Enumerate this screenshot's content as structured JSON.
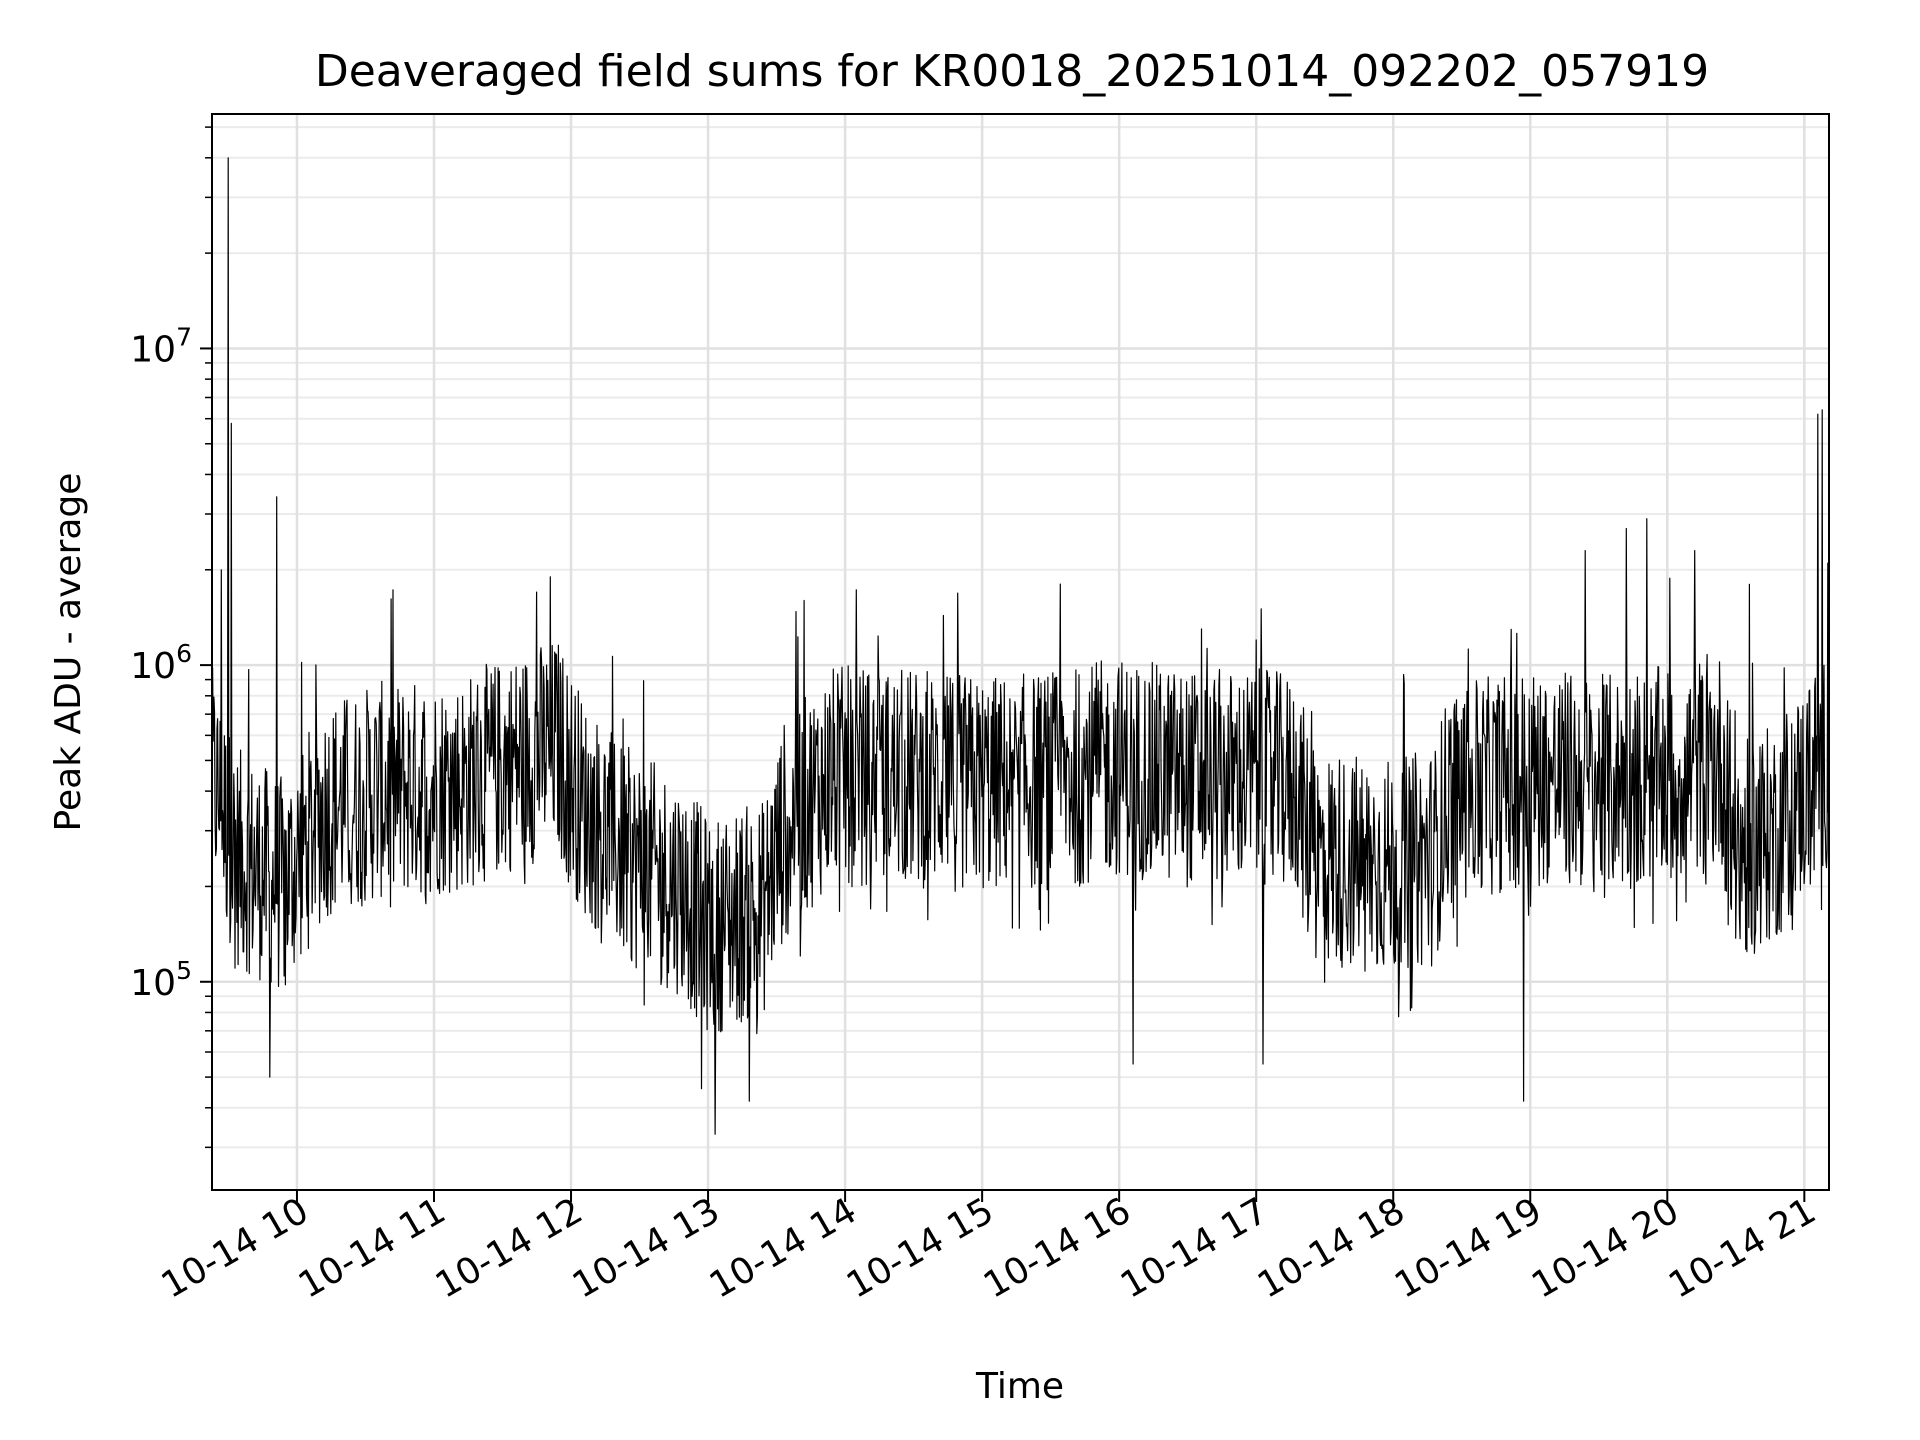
{
  "chart_data": {
    "type": "line",
    "title": "Deaveraged field sums for KR0018_20251014_092202_057919",
    "xlabel": "Time",
    "ylabel": "Peak ADU - average",
    "yscale": "log",
    "ylim": [
      22000,
      55000000
    ],
    "xlim_hours": [
      9.38,
      21.18
    ],
    "grid": true,
    "line_color": "#000000",
    "x_ticks": [
      {
        "hour": 10,
        "label": "10-14 10"
      },
      {
        "hour": 11,
        "label": "10-14 11"
      },
      {
        "hour": 12,
        "label": "10-14 12"
      },
      {
        "hour": 13,
        "label": "10-14 13"
      },
      {
        "hour": 14,
        "label": "10-14 14"
      },
      {
        "hour": 15,
        "label": "10-14 15"
      },
      {
        "hour": 16,
        "label": "10-14 16"
      },
      {
        "hour": 17,
        "label": "10-14 17"
      },
      {
        "hour": 18,
        "label": "10-14 18"
      },
      {
        "hour": 19,
        "label": "10-14 19"
      },
      {
        "hour": 20,
        "label": "10-14 20"
      },
      {
        "hour": 21,
        "label": "10-14 21"
      }
    ],
    "y_ticks": [
      {
        "value": 100000,
        "base": "10",
        "exp": "5"
      },
      {
        "value": 1000000,
        "base": "10",
        "exp": "6"
      },
      {
        "value": 10000000,
        "base": "10",
        "exp": "7"
      }
    ],
    "series": [
      {
        "name": "deaveraged field sum",
        "baseline_profile": [
          [
            9.38,
            450000
          ],
          [
            9.55,
            250000
          ],
          [
            9.9,
            200000
          ],
          [
            10.2,
            350000
          ],
          [
            10.6,
            400000
          ],
          [
            11.2,
            420000
          ],
          [
            11.6,
            500000
          ],
          [
            11.9,
            560000
          ],
          [
            12.1,
            350000
          ],
          [
            12.4,
            250000
          ],
          [
            12.8,
            200000
          ],
          [
            13.0,
            150000
          ],
          [
            13.4,
            170000
          ],
          [
            13.55,
            300000
          ],
          [
            13.9,
            450000
          ],
          [
            14.5,
            440000
          ],
          [
            15.0,
            420000
          ],
          [
            15.5,
            430000
          ],
          [
            16.0,
            480000
          ],
          [
            16.5,
            440000
          ],
          [
            17.0,
            440000
          ],
          [
            17.3,
            420000
          ],
          [
            17.4,
            250000
          ],
          [
            18.0,
            230000
          ],
          [
            18.3,
            250000
          ],
          [
            18.4,
            380000
          ],
          [
            19.0,
            450000
          ],
          [
            19.5,
            420000
          ],
          [
            20.0,
            450000
          ],
          [
            20.4,
            500000
          ],
          [
            20.5,
            250000
          ],
          [
            20.8,
            300000
          ],
          [
            21.0,
            400000
          ],
          [
            21.18,
            520000
          ]
        ],
        "peaks": [
          [
            9.45,
            2000000
          ],
          [
            9.5,
            40000000
          ],
          [
            9.52,
            5800000
          ],
          [
            9.85,
            3400000
          ],
          [
            11.75,
            1700000
          ],
          [
            11.85,
            1900000
          ],
          [
            13.7,
            1600000
          ],
          [
            16.6,
            1300000
          ],
          [
            17.0,
            1200000
          ],
          [
            19.4,
            2300000
          ],
          [
            19.7,
            2700000
          ],
          [
            19.85,
            2900000
          ],
          [
            20.2,
            2300000
          ],
          [
            20.6,
            1800000
          ],
          [
            21.1,
            6200000
          ],
          [
            21.13,
            6400000
          ],
          [
            21.17,
            2100000
          ]
        ],
        "dips": [
          [
            9.8,
            50000
          ],
          [
            12.95,
            46000
          ],
          [
            13.05,
            33000
          ],
          [
            13.3,
            42000
          ],
          [
            18.95,
            42000
          ],
          [
            16.1,
            55000
          ],
          [
            17.05,
            55000
          ]
        ]
      }
    ]
  }
}
